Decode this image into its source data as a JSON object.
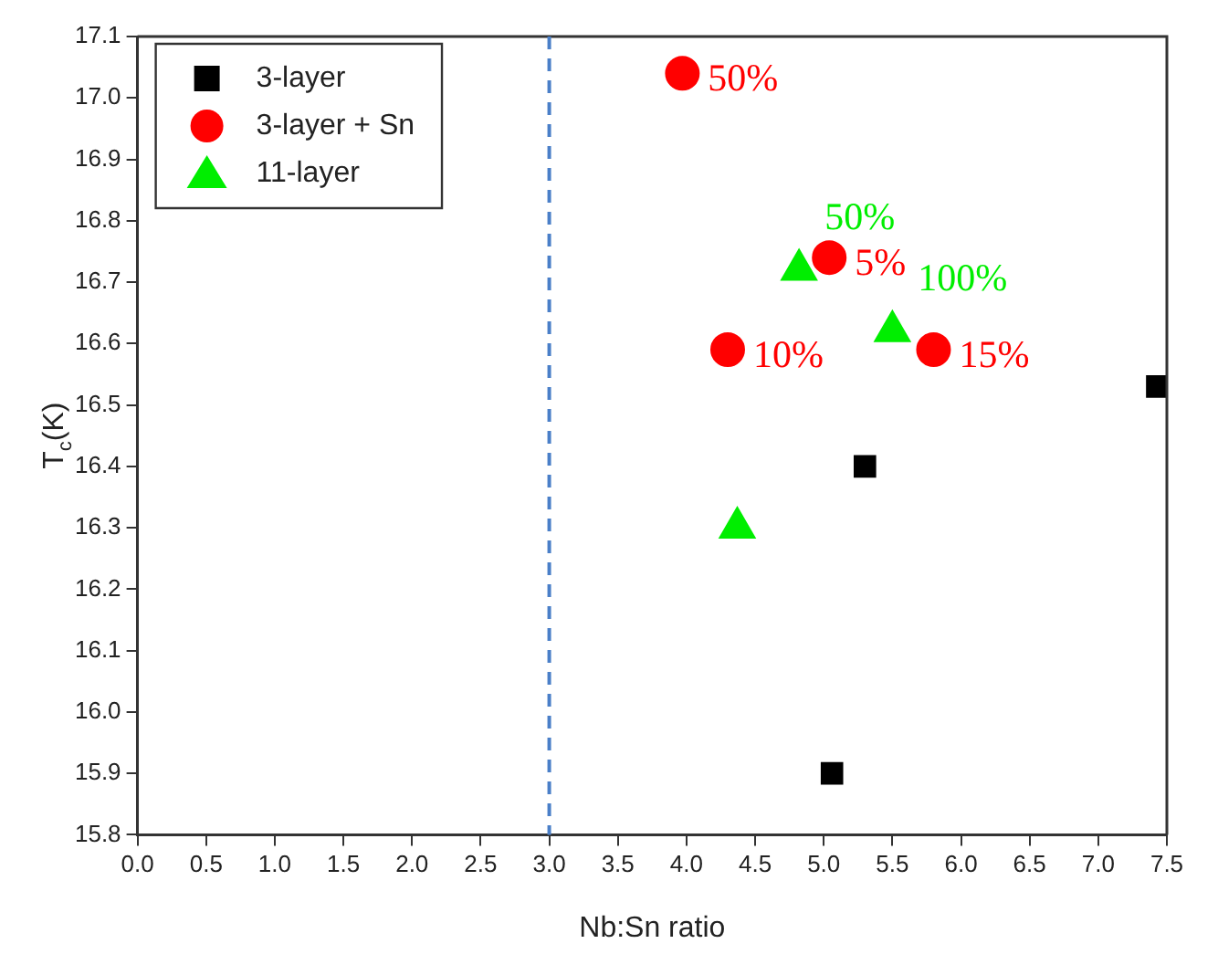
{
  "chart_data": {
    "type": "scatter",
    "xlabel": "Nb:Sn ratio",
    "ylabel": "T$_{c}$(K)",
    "xlim": [
      0,
      7.5
    ],
    "xticks": [
      {
        "value": 0,
        "label": "0.0"
      },
      {
        "value": 0.5,
        "label": "0.5"
      },
      {
        "value": 1,
        "label": "1.0"
      },
      {
        "value": 1.5,
        "label": "1.5"
      },
      {
        "value": 2,
        "label": "2.0"
      },
      {
        "value": 2.5,
        "label": "2.5"
      },
      {
        "value": 3,
        "label": "3.0"
      },
      {
        "value": 3.5,
        "label": "3.5"
      },
      {
        "value": 4,
        "label": "4.0"
      },
      {
        "value": 4.5,
        "label": "4.5"
      },
      {
        "value": 5,
        "label": "5.0"
      },
      {
        "value": 5.5,
        "label": "5.5"
      },
      {
        "value": 6,
        "label": "6.0"
      },
      {
        "value": 6.5,
        "label": "6.5"
      },
      {
        "value": 7,
        "label": "7.0"
      },
      {
        "value": 7.5,
        "label": "7.5"
      }
    ],
    "ylim": [
      15.8,
      17.1
    ],
    "yticks": [
      15.8,
      15.9,
      {
        "value": 16,
        "label": "16.0"
      },
      16.1,
      16.2,
      16.3,
      16.4,
      16.5,
      16.6,
      16.7,
      16.8,
      16.9,
      {
        "value": 17,
        "label": "17.0"
      },
      17.1
    ],
    "legend": "top left",
    "grid": false,
    "series": [
      {
        "name": "3-layer",
        "color": "#000000",
        "marker": "square",
        "x": [
          7.43,
          5.3,
          5.06
        ],
        "values": [
          16.53,
          16.4,
          15.9
        ]
      },
      {
        "name": "3-layer + Sn",
        "color": "#ff0000",
        "marker": "circle",
        "x": [
          3.97,
          5.04,
          4.3,
          5.8
        ],
        "values": [
          17.04,
          16.74,
          16.59,
          16.59
        ]
      },
      {
        "name": "11-layer",
        "color": "#00ee00",
        "marker": "triangle",
        "x": [
          4.82,
          5.5,
          4.37
        ],
        "values": [
          16.72,
          16.62,
          16.3
        ]
      }
    ],
    "annotations": [
      {
        "text": "50%",
        "x": 3.97,
        "y": 17.04
      },
      {
        "text": "5%",
        "x": 5.04,
        "y": 16.74
      },
      {
        "text": "10%",
        "x": 4.3,
        "y": 16.59
      },
      {
        "text": "15%",
        "x": 5.8,
        "y": 16.59
      },
      {
        "text": "50%",
        "x": 4.82,
        "y": 16.72
      },
      {
        "text": "100%",
        "x": 5.5,
        "y": 16.62
      }
    ],
    "ref_lines": [
      {
        "axis": "x",
        "value": 3,
        "color": "#4a7fc8",
        "line_style": "dashed"
      }
    ]
  }
}
